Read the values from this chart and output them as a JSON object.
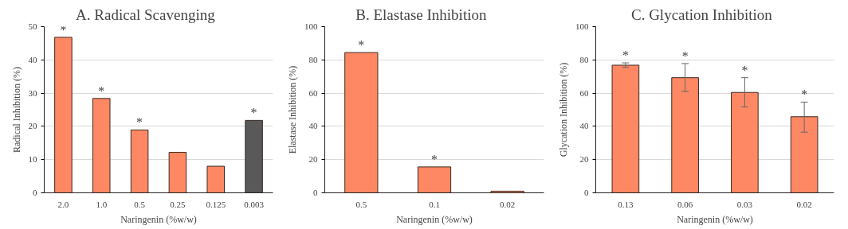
{
  "chart_data": [
    {
      "type": "bar",
      "title": "A.        Radical Scavenging",
      "xlabel": "Naringenin (%w/w)",
      "ylabel": "Radical Inhibition (%)",
      "categories": [
        "2.0",
        "1.0",
        "0.5",
        "0.25",
        "0.125",
        "0.003"
      ],
      "values": [
        46.8,
        28.4,
        18.9,
        12.2,
        8.0,
        21.8
      ],
      "colors": [
        "#fe8864",
        "#fe8864",
        "#fe8864",
        "#fe8864",
        "#fe8864",
        "#595959"
      ],
      "ylim": [
        0,
        50
      ],
      "yticks": [
        0,
        10,
        20,
        30,
        40,
        50
      ],
      "grid": "y",
      "annotations": [
        {
          "text": "*",
          "x": "2.0",
          "y": 46.8
        },
        {
          "text": "*",
          "x": "1.0",
          "y": 28.4
        },
        {
          "text": "*",
          "x": "0.5",
          "y": 18.9
        },
        {
          "text": "*",
          "x": "0.003",
          "y": 21.8
        }
      ]
    },
    {
      "type": "bar",
      "title": "B.        Elastase Inhibition",
      "xlabel": "Naringenin (%w/w)",
      "ylabel": "Elastase Inhibition (%)",
      "categories": [
        "0.5",
        "0.1",
        "0.02"
      ],
      "values": [
        84.4,
        15.6,
        1.0
      ],
      "color": "#fe8864",
      "ylim": [
        0,
        100
      ],
      "yticks": [
        0,
        20,
        40,
        60,
        80,
        100
      ],
      "grid": "y",
      "annotations": [
        {
          "text": "*",
          "x": "0.5",
          "y": 84.4
        },
        {
          "text": "*",
          "x": "0.1",
          "y": 15.6
        }
      ]
    },
    {
      "type": "bar",
      "title": "C.        Glycation Inhibition",
      "xlabel": "Naringenin (%w/w)",
      "ylabel": "Glycation Inhibition (%)",
      "categories": [
        "0.13",
        "0.06",
        "0.03",
        "0.02"
      ],
      "values": [
        76.8,
        69.3,
        60.4,
        45.8
      ],
      "errors": [
        [
          75.5,
          78.2
        ],
        [
          61.0,
          77.8
        ],
        [
          51.7,
          69.3
        ],
        [
          36.5,
          54.6
        ]
      ],
      "color": "#fe8864",
      "ylim": [
        0,
        100
      ],
      "yticks": [
        0,
        20,
        40,
        60,
        80,
        100
      ],
      "grid": "y",
      "annotations": [
        {
          "text": "*",
          "x": "0.13",
          "y": 78.2
        },
        {
          "text": "*",
          "x": "0.06",
          "y": 77.8
        },
        {
          "text": "*",
          "x": "0.03",
          "y": 69.3
        },
        {
          "text": "*",
          "x": "0.02",
          "y": 54.6
        }
      ]
    }
  ]
}
